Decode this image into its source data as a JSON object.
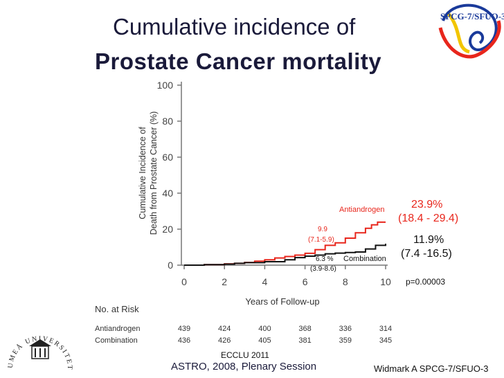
{
  "slide": {
    "title_line1": "Cumulative incidence of",
    "title_line2": "Prostate Cancer mortality",
    "footer_left": "ASTRO, 2008, Plenary Session",
    "footer_right": "Widmark A SPCG-7/SFUO-3",
    "conference": "ECCLU 2011",
    "logo_text": "SPCG-7/SFUO-3",
    "seal_text": "UMEÅ UNIVERSITET"
  },
  "annotations": {
    "antiandrogen_final": "23.9%",
    "antiandrogen_ci": "(18.4 - 29.4)",
    "combination_final": "11.9%",
    "combination_ci": "(7.4 -16.5)",
    "antiandrogen_mid": "9.9",
    "antiandrogen_mid_ci": "(7.1-5.9)",
    "combination_mid": "6.3 %",
    "combination_mid_ci": "(3.9-8.6)",
    "p_value": "p=0.00003"
  },
  "colors": {
    "antiandrogen": "#e8261c",
    "combination": "#111111",
    "axis": "#777777",
    "title": "#1a1a3a"
  },
  "chart_data": {
    "type": "line",
    "title": "Cumulative incidence of Prostate Cancer mortality",
    "xlabel": "Years of Follow-up",
    "ylabel": "Cumulative Incidence of Death from Prostate Cancer (%)",
    "xlim": [
      0,
      10
    ],
    "ylim": [
      0,
      100
    ],
    "xticks": [
      0,
      2,
      4,
      6,
      8,
      10
    ],
    "yticks": [
      0,
      20,
      40,
      60,
      80,
      100
    ],
    "series": [
      {
        "name": "Antiandrogen",
        "x": [
          0,
          1,
          2,
          2.5,
          3,
          3.5,
          4,
          4.5,
          5,
          5.5,
          6,
          6.5,
          7,
          7.5,
          8,
          8.5,
          9,
          9.3,
          9.6,
          10
        ],
        "y": [
          0,
          0.3,
          0.7,
          1.0,
          1.5,
          2.2,
          3.0,
          4.0,
          4.8,
          5.6,
          6.6,
          8.6,
          11.0,
          12.4,
          15.0,
          18.0,
          20.5,
          22.4,
          23.9,
          23.9
        ]
      },
      {
        "name": "Combination",
        "x": [
          0,
          1,
          2,
          2.5,
          3,
          4,
          5,
          5.5,
          6,
          6.5,
          7,
          7.5,
          8,
          8.5,
          9,
          9.5,
          10
        ],
        "y": [
          0,
          0.3,
          0.6,
          1.0,
          1.4,
          1.9,
          3.0,
          4.2,
          5.0,
          5.6,
          6.3,
          6.7,
          7.0,
          7.3,
          9.0,
          11.0,
          11.9
        ]
      }
    ],
    "risk_table": {
      "header": "No. at Risk",
      "times": [
        0,
        2,
        4,
        6,
        8,
        10
      ],
      "rows": [
        {
          "name": "Antiandrogen",
          "values": [
            "439",
            "424",
            "400",
            "368",
            "336",
            "314"
          ]
        },
        {
          "name": "Combination",
          "values": [
            "436",
            "426",
            "405",
            "381",
            "359",
            "345"
          ]
        }
      ]
    }
  }
}
